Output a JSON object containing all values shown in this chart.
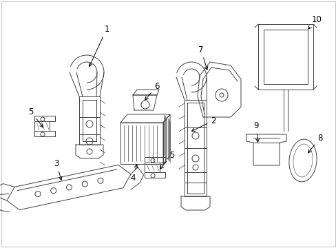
{
  "background_color": "#ffffff",
  "line_color": "#404040",
  "text_color": "#000000",
  "fig_width": 4.89,
  "fig_height": 3.6,
  "dpi": 100,
  "border_color": "#aaaaaa",
  "lw": 0.7
}
